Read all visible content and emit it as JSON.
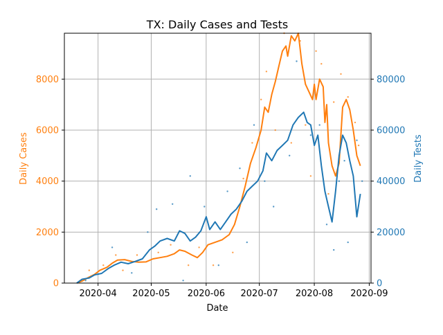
{
  "chart_data": {
    "type": "line",
    "title": "TX: Daily Cases and Tests",
    "xlabel": "Date",
    "ylabel_left": "Daily Cases",
    "ylabel_right": "Daily Tests",
    "xlim": [
      "2020-03-13",
      "2020-09-02"
    ],
    "ylim_left": [
      0,
      9800
    ],
    "ylim_right": [
      0,
      98000
    ],
    "x_ticks": [
      "2020-04-01",
      "2020-05-01",
      "2020-06-01",
      "2020-07-01",
      "2020-08-01",
      "2020-09-01"
    ],
    "x_tick_labels": [
      "2020-04",
      "2020-05",
      "2020-06",
      "2020-07",
      "2020-08",
      "2020-09"
    ],
    "y_ticks_left": [
      0,
      2000,
      4000,
      6000,
      8000
    ],
    "y_ticks_right": [
      0,
      20000,
      40000,
      60000,
      80000
    ],
    "grid": true,
    "colors": {
      "cases": "#ff7f0e",
      "tests": "#1f77b4",
      "axis": "#000000",
      "grid": "#b0b0b0"
    },
    "series": [
      {
        "axis": "left",
        "color": "#ff7f0e",
        "style": "line",
        "points": [
          [
            "2020-03-20",
            0
          ],
          [
            "2020-03-23",
            80
          ],
          [
            "2020-03-26",
            200
          ],
          [
            "2020-03-30",
            340
          ],
          [
            "2020-04-02",
            500
          ],
          [
            "2020-04-06",
            620
          ],
          [
            "2020-04-09",
            780
          ],
          [
            "2020-04-12",
            900
          ],
          [
            "2020-04-16",
            920
          ],
          [
            "2020-04-20",
            850
          ],
          [
            "2020-04-24",
            820
          ],
          [
            "2020-04-28",
            830
          ],
          [
            "2020-05-02",
            950
          ],
          [
            "2020-05-06",
            1000
          ],
          [
            "2020-05-10",
            1050
          ],
          [
            "2020-05-14",
            1150
          ],
          [
            "2020-05-17",
            1300
          ],
          [
            "2020-05-20",
            1250
          ],
          [
            "2020-05-24",
            1100
          ],
          [
            "2020-05-27",
            1000
          ],
          [
            "2020-05-30",
            1200
          ],
          [
            "2020-06-02",
            1500
          ],
          [
            "2020-06-06",
            1600
          ],
          [
            "2020-06-10",
            1700
          ],
          [
            "2020-06-14",
            1900
          ],
          [
            "2020-06-17",
            2300
          ],
          [
            "2020-06-20",
            3000
          ],
          [
            "2020-06-23",
            3800
          ],
          [
            "2020-06-26",
            4700
          ],
          [
            "2020-06-29",
            5300
          ],
          [
            "2020-07-02",
            6000
          ],
          [
            "2020-07-04",
            6900
          ],
          [
            "2020-07-06",
            6700
          ],
          [
            "2020-07-08",
            7400
          ],
          [
            "2020-07-10",
            7900
          ],
          [
            "2020-07-12",
            8500
          ],
          [
            "2020-07-14",
            9100
          ],
          [
            "2020-07-16",
            9300
          ],
          [
            "2020-07-17",
            8900
          ],
          [
            "2020-07-19",
            9700
          ],
          [
            "2020-07-21",
            9500
          ],
          [
            "2020-07-23",
            9800
          ],
          [
            "2020-07-25",
            8600
          ],
          [
            "2020-07-27",
            7800
          ],
          [
            "2020-07-29",
            7500
          ],
          [
            "2020-07-31",
            7200
          ],
          [
            "2020-08-01",
            7800
          ],
          [
            "2020-08-02",
            7200
          ],
          [
            "2020-08-04",
            8000
          ],
          [
            "2020-08-06",
            7700
          ],
          [
            "2020-08-07",
            6300
          ],
          [
            "2020-08-08",
            7000
          ],
          [
            "2020-08-09",
            5500
          ],
          [
            "2020-08-11",
            4600
          ],
          [
            "2020-08-13",
            4200
          ],
          [
            "2020-08-15",
            4700
          ],
          [
            "2020-08-17",
            6900
          ],
          [
            "2020-08-19",
            7200
          ],
          [
            "2020-08-21",
            6800
          ],
          [
            "2020-08-23",
            6000
          ],
          [
            "2020-08-25",
            5000
          ],
          [
            "2020-08-27",
            4600
          ]
        ]
      },
      {
        "axis": "right",
        "color": "#1f77b4",
        "style": "line",
        "points": [
          [
            "2020-03-20",
            0
          ],
          [
            "2020-03-23",
            1500
          ],
          [
            "2020-03-27",
            2000
          ],
          [
            "2020-03-30",
            3200
          ],
          [
            "2020-04-03",
            3800
          ],
          [
            "2020-04-07",
            5800
          ],
          [
            "2020-04-10",
            7000
          ],
          [
            "2020-04-14",
            8200
          ],
          [
            "2020-04-18",
            7600
          ],
          [
            "2020-04-22",
            8500
          ],
          [
            "2020-04-26",
            9500
          ],
          [
            "2020-04-30",
            13000
          ],
          [
            "2020-05-03",
            14500
          ],
          [
            "2020-05-06",
            16500
          ],
          [
            "2020-05-10",
            17500
          ],
          [
            "2020-05-14",
            16500
          ],
          [
            "2020-05-17",
            20500
          ],
          [
            "2020-05-20",
            19500
          ],
          [
            "2020-05-23",
            16500
          ],
          [
            "2020-05-26",
            18000
          ],
          [
            "2020-05-29",
            20500
          ],
          [
            "2020-06-01",
            26000
          ],
          [
            "2020-06-03",
            21000
          ],
          [
            "2020-06-06",
            24000
          ],
          [
            "2020-06-09",
            21000
          ],
          [
            "2020-06-12",
            24000
          ],
          [
            "2020-06-15",
            27000
          ],
          [
            "2020-06-18",
            29000
          ],
          [
            "2020-06-21",
            32000
          ],
          [
            "2020-06-24",
            36000
          ],
          [
            "2020-06-27",
            38000
          ],
          [
            "2020-06-30",
            40000
          ],
          [
            "2020-07-03",
            44000
          ],
          [
            "2020-07-05",
            51000
          ],
          [
            "2020-07-08",
            48000
          ],
          [
            "2020-07-11",
            52000
          ],
          [
            "2020-07-14",
            54000
          ],
          [
            "2020-07-17",
            56000
          ],
          [
            "2020-07-20",
            62000
          ],
          [
            "2020-07-23",
            65000
          ],
          [
            "2020-07-26",
            67000
          ],
          [
            "2020-07-28",
            63000
          ],
          [
            "2020-07-30",
            62000
          ],
          [
            "2020-08-01",
            54000
          ],
          [
            "2020-08-03",
            58000
          ],
          [
            "2020-08-05",
            46000
          ],
          [
            "2020-08-07",
            36000
          ],
          [
            "2020-08-09",
            30000
          ],
          [
            "2020-08-11",
            24000
          ],
          [
            "2020-08-13",
            36000
          ],
          [
            "2020-08-15",
            50000
          ],
          [
            "2020-08-17",
            58000
          ],
          [
            "2020-08-19",
            55000
          ],
          [
            "2020-08-21",
            48000
          ],
          [
            "2020-08-23",
            42000
          ],
          [
            "2020-08-25",
            26000
          ],
          [
            "2020-08-27",
            35000
          ]
        ]
      },
      {
        "axis": "left",
        "color": "#ff7f0e",
        "style": "scatter",
        "points": [
          [
            "2020-03-27",
            500
          ],
          [
            "2020-04-04",
            700
          ],
          [
            "2020-04-11",
            1100
          ],
          [
            "2020-04-15",
            500
          ],
          [
            "2020-04-23",
            1100
          ],
          [
            "2020-05-05",
            1200
          ],
          [
            "2020-05-12",
            1500
          ],
          [
            "2020-05-22",
            700
          ],
          [
            "2020-05-28",
            1400
          ],
          [
            "2020-06-05",
            700
          ],
          [
            "2020-06-16",
            1200
          ],
          [
            "2020-06-22",
            4100
          ],
          [
            "2020-06-27",
            5500
          ],
          [
            "2020-07-02",
            7200
          ],
          [
            "2020-07-05",
            8300
          ],
          [
            "2020-07-10",
            6000
          ],
          [
            "2020-07-15",
            9800
          ],
          [
            "2020-07-19",
            5500
          ],
          [
            "2020-07-24",
            9500
          ],
          [
            "2020-07-27",
            6200
          ],
          [
            "2020-07-30",
            4200
          ],
          [
            "2020-08-02",
            9100
          ],
          [
            "2020-08-05",
            8600
          ],
          [
            "2020-08-09",
            3500
          ],
          [
            "2020-08-12",
            7100
          ],
          [
            "2020-08-16",
            8200
          ],
          [
            "2020-08-20",
            7300
          ],
          [
            "2020-08-24",
            6300
          ],
          [
            "2020-08-26",
            5400
          ]
        ]
      },
      {
        "axis": "right",
        "color": "#1f77b4",
        "style": "scatter",
        "points": [
          [
            "2020-03-25",
            1000
          ],
          [
            "2020-04-01",
            3500
          ],
          [
            "2020-04-09",
            14000
          ],
          [
            "2020-04-20",
            4000
          ],
          [
            "2020-04-29",
            20000
          ],
          [
            "2020-05-04",
            29000
          ],
          [
            "2020-05-13",
            31000
          ],
          [
            "2020-05-19",
            1000
          ],
          [
            "2020-05-23",
            42000
          ],
          [
            "2020-05-31",
            30000
          ],
          [
            "2020-06-08",
            7000
          ],
          [
            "2020-06-13",
            36000
          ],
          [
            "2020-06-20",
            45000
          ],
          [
            "2020-06-24",
            16000
          ],
          [
            "2020-06-28",
            62000
          ],
          [
            "2020-07-04",
            40000
          ],
          [
            "2020-07-09",
            30000
          ],
          [
            "2020-07-18",
            50000
          ],
          [
            "2020-07-22",
            87000
          ],
          [
            "2020-07-30",
            58000
          ],
          [
            "2020-08-04",
            62000
          ],
          [
            "2020-08-08",
            23000
          ],
          [
            "2020-08-12",
            13000
          ],
          [
            "2020-08-15",
            40000
          ],
          [
            "2020-08-18",
            48000
          ],
          [
            "2020-08-20",
            16000
          ],
          [
            "2020-08-25",
            56000
          ],
          [
            "2020-08-28",
            40000
          ]
        ]
      }
    ]
  }
}
